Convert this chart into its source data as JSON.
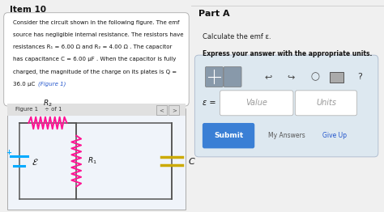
{
  "bg_color": "#f0f0f0",
  "left_panel_bg": "#f0f0f0",
  "right_panel_bg": "#ffffff",
  "item_title": "Item 10",
  "problem_lines": [
    "Consider the circuit shown in the following figure. The emf",
    "source has negligible internal resistance. The resistors have",
    "resistances R₁ = 6.00 Ω and R₂ = 4.00 Ω . The capacitor",
    "has capacitance C = 6.00 μF . When the capacitor is fully",
    "charged, the magnitude of the charge on its plates is Q =",
    "36.0 μC"
  ],
  "figure_link": "(Figure 1)",
  "figure_label": "Figure 1",
  "figure_of": "÷ of 1",
  "part_a_title": "Part A",
  "part_a_sub": "Calculate the emf ε.",
  "part_a_express": "Express your answer with the appropriate units.",
  "epsilon_label": "ε =",
  "value_placeholder": "Value",
  "units_placeholder": "Units",
  "submit_text": "Submit",
  "my_answers_text": "My Answers",
  "give_up_text": "Give Up",
  "wire_color": "#555555",
  "resistor_color": "#ff1493",
  "battery_color": "#00aaff",
  "capacitor_color": "#ccaa00",
  "submit_btn_color": "#3a7fd5",
  "submit_text_color": "#ffffff",
  "box_bg": "#e8eef5",
  "toolbar_bg": "#d0dce8"
}
